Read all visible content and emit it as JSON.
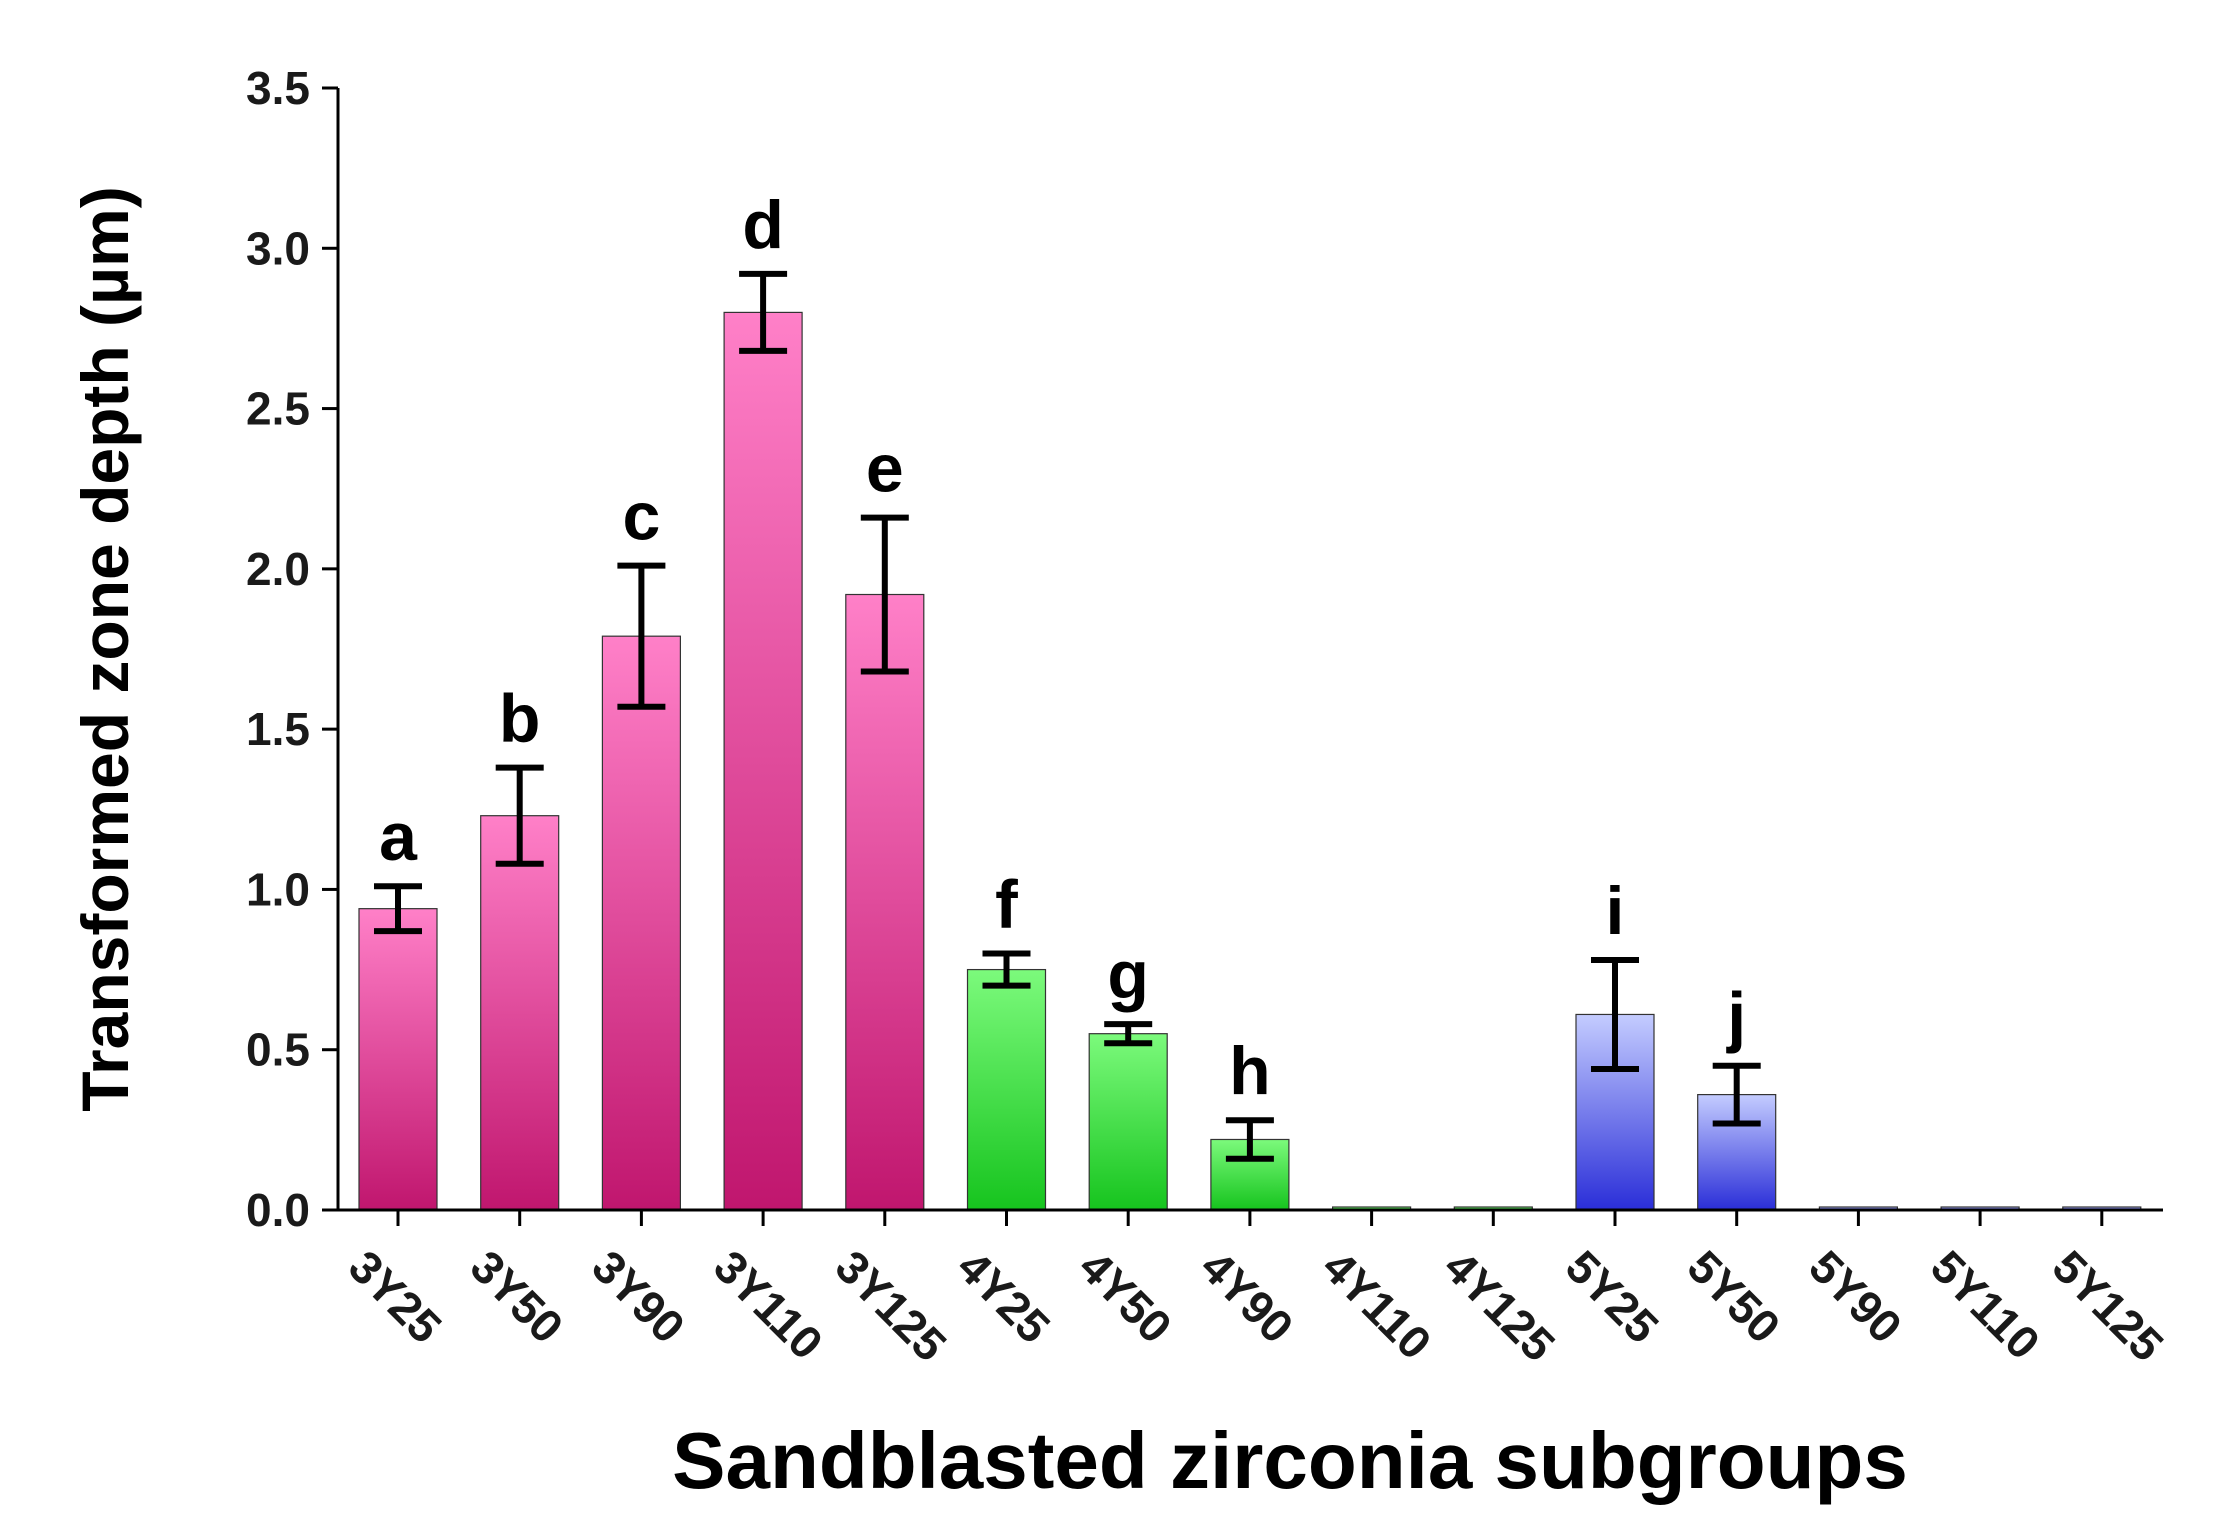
{
  "chart_data": {
    "type": "bar",
    "title": "",
    "xlabel": "Sandblasted zirconia subgroups",
    "ylabel": "Transformed zone depth (µm)",
    "ylim": [
      0,
      3.5
    ],
    "yticks": [
      "0.0",
      "0.5",
      "1.0",
      "1.5",
      "2.0",
      "2.5",
      "3.0",
      "3.5"
    ],
    "categories": [
      "3Y25",
      "3Y50",
      "3Y90",
      "3Y110",
      "3Y125",
      "4Y25",
      "4Y50",
      "4Y90",
      "4Y110",
      "4Y125",
      "5Y25",
      "5Y50",
      "5Y90",
      "5Y110",
      "5Y125"
    ],
    "values": [
      0.94,
      1.23,
      1.79,
      2.8,
      1.92,
      0.75,
      0.55,
      0.22,
      0,
      0,
      0.61,
      0.36,
      0,
      0,
      0
    ],
    "errors": [
      0.07,
      0.15,
      0.22,
      0.12,
      0.24,
      0.05,
      0.03,
      0.06,
      0,
      0,
      0.17,
      0.09,
      0,
      0,
      0
    ],
    "letters": [
      "a",
      "b",
      "c",
      "d",
      "e",
      "f",
      "g",
      "h",
      "",
      "",
      "i",
      "j",
      "",
      "",
      ""
    ],
    "groups": [
      "3Y",
      "3Y",
      "3Y",
      "3Y",
      "3Y",
      "4Y",
      "4Y",
      "4Y",
      "4Y",
      "4Y",
      "5Y",
      "5Y",
      "5Y",
      "5Y",
      "5Y"
    ],
    "group_colors": {
      "3Y": {
        "top": "#ff80c8",
        "bottom": "#c0166e"
      },
      "4Y": {
        "top": "#7cfa7c",
        "bottom": "#16c41e"
      },
      "5Y": {
        "top": "#c4ccff",
        "bottom": "#2a2ed8"
      }
    },
    "axis_color": "#000000"
  }
}
